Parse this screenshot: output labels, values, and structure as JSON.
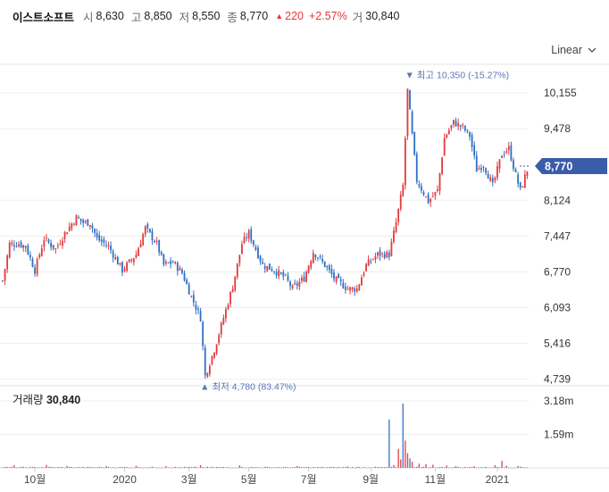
{
  "header": {
    "name": "이스트소프트",
    "open_label": "시",
    "open": "8,630",
    "high_label": "고",
    "high": "8,850",
    "low_label": "저",
    "low": "8,550",
    "close_label": "종",
    "close": "8,770",
    "change": "220",
    "change_pct": "+2.57%",
    "volume_label": "거",
    "volume": "30,840"
  },
  "scale_select": {
    "value": "Linear"
  },
  "colors": {
    "up": "#e03a3e",
    "down": "#2f6fc4",
    "price_tag_bg": "#3b5ca8",
    "annotation": "#5b76b5",
    "grid": "#efefef"
  },
  "chart_data": {
    "type": "candlestick",
    "price_axis": {
      "ticks": [
        4739,
        5416,
        6093,
        6770,
        7447,
        8124,
        9478,
        10155
      ],
      "tick_labels": [
        "4,739",
        "5,416",
        "6,093",
        "6,770",
        "7,447",
        "8,124",
        "9,478",
        "10,155"
      ],
      "range": [
        4650,
        10560
      ]
    },
    "current_price": {
      "value": 8770,
      "label": "8,770"
    },
    "max_annotation": {
      "value": 10350,
      "text": "최고 10,350 (-15.27%)",
      "index": 176
    },
    "min_annotation": {
      "value": 4780,
      "text": "최저 4,780 (83.47%)",
      "index": 87
    },
    "volume_panel": {
      "label": "거래량",
      "value": "30,840",
      "ticks": [
        "3.18m",
        "1.59m"
      ],
      "tick_values": [
        3180000,
        1590000
      ],
      "max": 3900000
    },
    "x_axis": {
      "labels": [
        "10월",
        "2020",
        "3월",
        "5월",
        "7월",
        "9월",
        "11월",
        "2021"
      ],
      "label_index": [
        14,
        53,
        81,
        107,
        133,
        160,
        188,
        215
      ]
    },
    "close_path": [
      [
        0,
        6600
      ],
      [
        3,
        7300
      ],
      [
        7,
        7300
      ],
      [
        10,
        7250
      ],
      [
        14,
        6800
      ],
      [
        18,
        7400
      ],
      [
        23,
        7200
      ],
      [
        27,
        7500
      ],
      [
        32,
        7800
      ],
      [
        35,
        7700
      ],
      [
        38,
        7700
      ],
      [
        41,
        7400
      ],
      [
        46,
        7250
      ],
      [
        52,
        6800
      ],
      [
        58,
        7100
      ],
      [
        62,
        7600
      ],
      [
        67,
        7300
      ],
      [
        70,
        6900
      ],
      [
        74,
        6950
      ],
      [
        78,
        6750
      ],
      [
        82,
        6300
      ],
      [
        86,
        5900
      ],
      [
        88,
        4800
      ],
      [
        92,
        5300
      ],
      [
        96,
        5900
      ],
      [
        100,
        6500
      ],
      [
        104,
        7300
      ],
      [
        107,
        7500
      ],
      [
        110,
        7200
      ],
      [
        113,
        6900
      ],
      [
        118,
        6800
      ],
      [
        123,
        6650
      ],
      [
        126,
        6450
      ],
      [
        131,
        6650
      ],
      [
        135,
        7150
      ],
      [
        140,
        6900
      ],
      [
        144,
        6650
      ],
      [
        150,
        6450
      ],
      [
        154,
        6450
      ],
      [
        158,
        6900
      ],
      [
        163,
        7100
      ],
      [
        168,
        7100
      ],
      [
        171,
        7700
      ],
      [
        174,
        8400
      ],
      [
        176,
        10200
      ],
      [
        180,
        8500
      ],
      [
        185,
        8100
      ],
      [
        189,
        8300
      ],
      [
        192,
        9300
      ],
      [
        196,
        9600
      ],
      [
        200,
        9500
      ],
      [
        203,
        9350
      ],
      [
        206,
        8700
      ],
      [
        209,
        8800
      ],
      [
        213,
        8400
      ],
      [
        217,
        9000
      ],
      [
        220,
        9100
      ],
      [
        223,
        8600
      ],
      [
        225,
        8300
      ],
      [
        228,
        8700
      ]
    ],
    "volume_spikes": [
      [
        5,
        120000
      ],
      [
        19,
        140000
      ],
      [
        28,
        90000
      ],
      [
        45,
        80000
      ],
      [
        58,
        100000
      ],
      [
        71,
        80000
      ],
      [
        86,
        130000
      ],
      [
        103,
        120000
      ],
      [
        128,
        90000
      ],
      [
        150,
        70000
      ],
      [
        168,
        2300000
      ],
      [
        170,
        140000
      ],
      [
        172,
        900000
      ],
      [
        173,
        400000
      ],
      [
        174,
        3050000
      ],
      [
        175,
        1300000
      ],
      [
        176,
        700000
      ],
      [
        177,
        450000
      ],
      [
        178,
        300000
      ],
      [
        181,
        200000
      ],
      [
        184,
        180000
      ],
      [
        187,
        150000
      ],
      [
        193,
        110000
      ],
      [
        197,
        90000
      ],
      [
        205,
        80000
      ],
      [
        214,
        130000
      ],
      [
        217,
        330000
      ],
      [
        219,
        100000
      ],
      [
        224,
        90000
      ]
    ]
  }
}
